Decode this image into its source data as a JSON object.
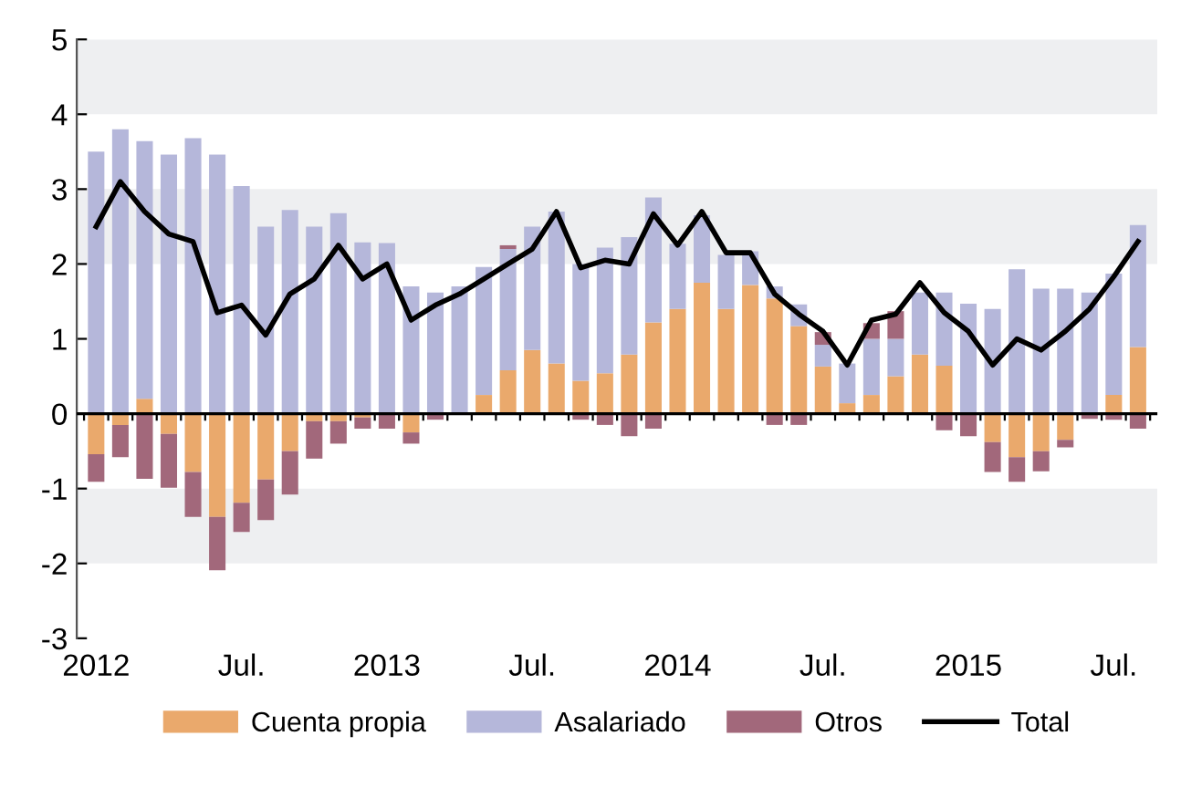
{
  "chart_data": {
    "type": "bar",
    "stacked": true,
    "categories": [
      "2012",
      null,
      null,
      null,
      null,
      null,
      "Jul.",
      null,
      null,
      null,
      null,
      null,
      "2013",
      null,
      null,
      null,
      null,
      null,
      "Jul.",
      null,
      null,
      null,
      null,
      null,
      "2014",
      null,
      null,
      null,
      null,
      null,
      "Jul.",
      null,
      null,
      null,
      null,
      null,
      "2015",
      null,
      null,
      null,
      null,
      null,
      "Jul.",
      null
    ],
    "series": [
      {
        "name": "Cuenta propia",
        "color": "#eaa96c",
        "values": [
          -0.54,
          -0.15,
          0.2,
          -0.27,
          -0.78,
          -1.38,
          -1.19,
          -0.88,
          -0.5,
          -0.1,
          -0.1,
          -0.05,
          0,
          -0.25,
          0,
          0,
          0.25,
          0.58,
          0.85,
          0.67,
          0.44,
          0.54,
          0.79,
          1.22,
          1.4,
          1.75,
          1.4,
          1.72,
          1.54,
          1.17,
          0.63,
          0.14,
          0.25,
          0.5,
          0.79,
          0.64,
          0,
          -0.38,
          -0.58,
          -0.5,
          -0.35,
          0,
          0.25,
          0.89
        ]
      },
      {
        "name": "Asalariado",
        "color": "#b5b7da",
        "values": [
          3.5,
          3.8,
          3.44,
          3.46,
          3.68,
          3.46,
          3.04,
          2.5,
          2.72,
          2.5,
          2.68,
          2.29,
          2.28,
          1.7,
          1.62,
          1.7,
          1.71,
          1.62,
          1.65,
          2.03,
          1.56,
          1.68,
          1.57,
          1.67,
          0.87,
          0.9,
          0.72,
          0.45,
          0.16,
          0.29,
          0.29,
          0.53,
          0.75,
          0.5,
          0.83,
          0.98,
          1.47,
          1.4,
          1.93,
          1.67,
          1.67,
          1.62,
          1.62,
          1.63
        ]
      },
      {
        "name": "Otros",
        "color": "#a2687b",
        "values": [
          -0.37,
          -0.43,
          -0.87,
          -0.72,
          -0.6,
          -0.71,
          -0.39,
          -0.54,
          -0.58,
          -0.5,
          -0.3,
          -0.15,
          -0.2,
          -0.15,
          -0.08,
          0,
          0,
          0.05,
          0,
          0,
          -0.08,
          -0.15,
          -0.3,
          -0.2,
          0,
          null,
          null,
          0,
          -0.15,
          -0.15,
          0.17,
          null,
          0.21,
          0.37,
          null,
          -0.22,
          -0.3,
          -0.4,
          -0.33,
          -0.27,
          -0.1,
          -0.07,
          -0.08,
          -0.2
        ]
      },
      {
        "name": "Total",
        "type": "line",
        "color": "#000000",
        "values": [
          2.5,
          3.1,
          2.7,
          2.4,
          2.3,
          1.35,
          1.45,
          1.05,
          1.6,
          1.8,
          2.25,
          1.8,
          2.0,
          1.25,
          1.45,
          1.6,
          1.8,
          2.0,
          2.2,
          2.7,
          1.95,
          2.05,
          2.0,
          2.67,
          2.25,
          2.7,
          2.15,
          2.15,
          1.6,
          1.33,
          1.1,
          0.65,
          1.25,
          1.33,
          1.75,
          1.35,
          1.1,
          0.65,
          1.0,
          0.85,
          1.1,
          1.4,
          1.83,
          2.3
        ]
      }
    ],
    "ylim": [
      -3,
      5
    ],
    "yticks": [
      -3,
      -2,
      -1,
      0,
      1,
      2,
      3,
      4,
      5
    ],
    "bands": [
      {
        "axis": "y",
        "from": 4,
        "to": 5,
        "color": "#eeeff1"
      },
      {
        "axis": "y",
        "from": 2,
        "to": 3,
        "color": "#eeeff1"
      },
      {
        "axis": "y",
        "from": -2,
        "to": -1,
        "color": "#eeeff1"
      }
    ],
    "legend": "bottom"
  }
}
